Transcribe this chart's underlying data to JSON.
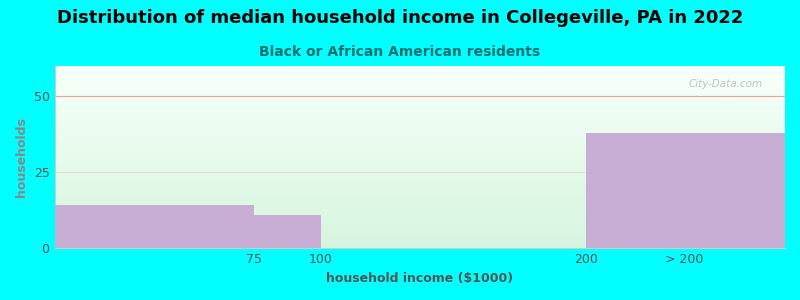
{
  "title": "Distribution of median household income in Collegeville, PA in 2022",
  "subtitle": "Black or African American residents",
  "xlabel": "household income ($1000)",
  "ylabel": "households",
  "background_color": "#00FFFF",
  "bar_color": "#c8aed4",
  "categories": [
    "75",
    "100",
    "200",
    "> 200"
  ],
  "bin_edges": [
    0,
    75,
    100,
    200,
    275
  ],
  "values": [
    14,
    11,
    0,
    38
  ],
  "yticks": [
    0,
    25,
    50
  ],
  "ylim": [
    0,
    60
  ],
  "xlim": [
    0,
    275
  ],
  "title_fontsize": 13,
  "subtitle_fontsize": 10,
  "axis_label_fontsize": 9,
  "tick_fontsize": 9,
  "watermark": "City-Data.com",
  "title_color": "#000000",
  "subtitle_color": "#007070",
  "label_color": "#555555",
  "ylabel_color": "#888888",
  "grid_line_color": "#f0a0a0",
  "plot_bg_top": "#f8fffa",
  "plot_bg_bottom": "#d8f5e0"
}
